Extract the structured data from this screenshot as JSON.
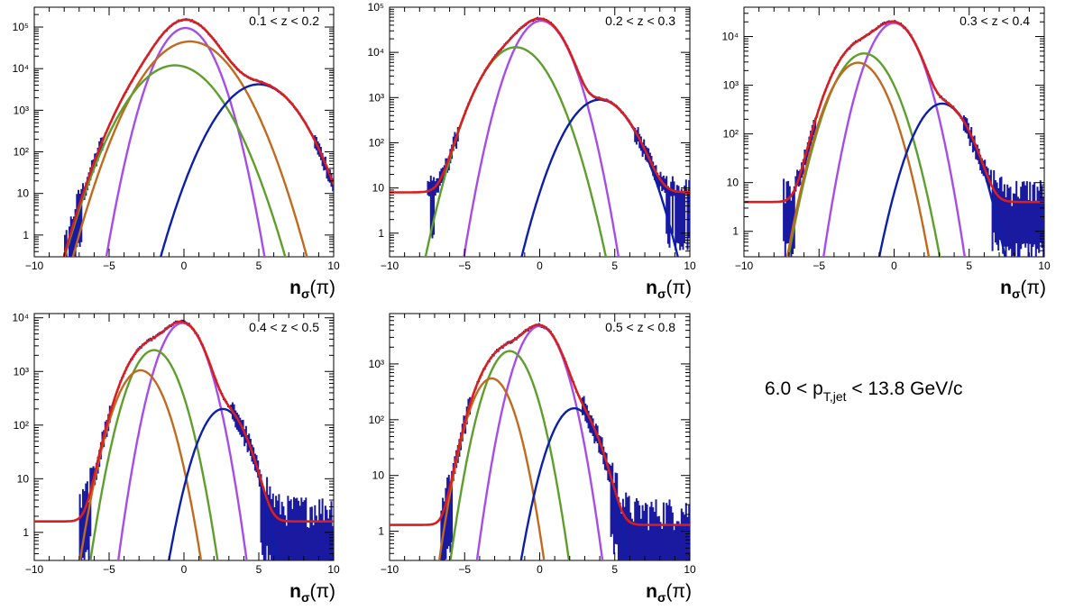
{
  "figure": {
    "note_label_prefix": "6.0 < p",
    "note_label_sub": "T,jet",
    "note_label_suffix": " < 13.8 GeV/c",
    "xaxis_title_main": "n",
    "xaxis_title_sub": "σ",
    "xaxis_title_tail": "(π)"
  },
  "colors": {
    "total": "#d81e1e",
    "data": "#1a1aa0",
    "purple": "#a64de8",
    "green": "#5e9e2c",
    "orange": "#bf6a1f",
    "blue": "#0b1fa8"
  },
  "chart_data": [
    {
      "type": "line",
      "title": "0.1 < z < 0.2",
      "xlabel": "nσ(π)",
      "ylabel": "",
      "xlim": [
        -10,
        10
      ],
      "ylim": [
        0.3,
        300000
      ],
      "yscale": "log",
      "xticks": [
        -10,
        -5,
        0,
        5,
        10
      ],
      "yticks": [
        {
          "v": 1,
          "t": "1"
        },
        {
          "v": 10,
          "t": "10"
        },
        {
          "v": 100,
          "t": "10²"
        },
        {
          "v": 1000,
          "t": "10³"
        },
        {
          "v": 10000,
          "t": "10⁴"
        },
        {
          "v": 100000,
          "t": "10⁵"
        }
      ],
      "components": [
        {
          "color": "purple",
          "A": 95000,
          "mu": 0.1,
          "sigma": 1.05
        },
        {
          "color": "orange",
          "A": 45000,
          "mu": 0.4,
          "sigma": 1.6
        },
        {
          "color": "green",
          "A": 12000,
          "mu": -0.6,
          "sigma": 1.6
        },
        {
          "color": "blue",
          "A": 4200,
          "mu": 5.0,
          "sigma": 1.5
        }
      ],
      "background": 0,
      "data_range": [
        -9.8,
        10
      ],
      "data_floor": 0.5
    },
    {
      "type": "line",
      "title": "0.2 < z < 0.3",
      "xlabel": "nσ(π)",
      "ylabel": "",
      "xlim": [
        -10,
        10
      ],
      "ylim": [
        0.3,
        100000
      ],
      "yscale": "log",
      "xticks": [
        -10,
        -5,
        0,
        5,
        10
      ],
      "yticks": [
        {
          "v": 1,
          "t": "1"
        },
        {
          "v": 10,
          "t": "10"
        },
        {
          "v": 100,
          "t": "10²"
        },
        {
          "v": 1000,
          "t": "10³"
        },
        {
          "v": 10000,
          "t": "10⁴"
        },
        {
          "v": 100000,
          "t": "10⁵"
        }
      ],
      "components": [
        {
          "color": "purple",
          "A": 50000,
          "mu": 0.1,
          "sigma": 1.05
        },
        {
          "color": "green",
          "A": 13000,
          "mu": -1.6,
          "sigma": 1.3
        },
        {
          "color": "blue",
          "A": 900,
          "mu": 4.0,
          "sigma": 1.3
        }
      ],
      "background": 8,
      "data_range": [
        -7.5,
        10
      ],
      "data_floor": 0.5
    },
    {
      "type": "line",
      "title": "0.3 < z < 0.4",
      "xlabel": "nσ(π)",
      "ylabel": "",
      "xlim": [
        -10,
        10
      ],
      "ylim": [
        0.3,
        40000
      ],
      "yscale": "log",
      "xticks": [
        -10,
        -5,
        0,
        5,
        10
      ],
      "yticks": [
        {
          "v": 1,
          "t": "1"
        },
        {
          "v": 10,
          "t": "10"
        },
        {
          "v": 100,
          "t": "10²"
        },
        {
          "v": 1000,
          "t": "10³"
        },
        {
          "v": 10000,
          "t": "10⁴"
        }
      ],
      "components": [
        {
          "color": "purple",
          "A": 19000,
          "mu": 0.0,
          "sigma": 1.0
        },
        {
          "color": "green",
          "A": 4500,
          "mu": -2.0,
          "sigma": 1.15
        },
        {
          "color": "orange",
          "A": 2900,
          "mu": -2.4,
          "sigma": 1.1
        },
        {
          "color": "blue",
          "A": 420,
          "mu": 3.2,
          "sigma": 1.1
        }
      ],
      "background": 4,
      "data_range": [
        -7.4,
        10
      ],
      "data_floor": 0.5
    },
    {
      "type": "line",
      "title": "0.4 < z < 0.5",
      "xlabel": "nσ(π)",
      "ylabel": "",
      "xlim": [
        -10,
        10
      ],
      "ylim": [
        0.3,
        12000
      ],
      "yscale": "log",
      "xticks": [
        -10,
        -5,
        0,
        5,
        10
      ],
      "yticks": [
        {
          "v": 1,
          "t": "1"
        },
        {
          "v": 10,
          "t": "10"
        },
        {
          "v": 100,
          "t": "10²"
        },
        {
          "v": 1000,
          "t": "10³"
        },
        {
          "v": 10000,
          "t": "10⁴"
        }
      ],
      "components": [
        {
          "color": "purple",
          "A": 8000,
          "mu": -0.1,
          "sigma": 0.95
        },
        {
          "color": "green",
          "A": 2500,
          "mu": -2.0,
          "sigma": 1.0
        },
        {
          "color": "orange",
          "A": 1050,
          "mu": -2.9,
          "sigma": 1.0
        },
        {
          "color": "blue",
          "A": 200,
          "mu": 2.6,
          "sigma": 1.0
        }
      ],
      "background": 1.6,
      "data_range": [
        -7.0,
        10
      ],
      "data_floor": 0.5
    },
    {
      "type": "line",
      "title": "0.5 < z < 0.8",
      "xlabel": "nσ(π)",
      "ylabel": "",
      "xlim": [
        -10,
        10
      ],
      "ylim": [
        0.3,
        8000
      ],
      "yscale": "log",
      "xticks": [
        -10,
        -5,
        0,
        5,
        10
      ],
      "yticks": [
        {
          "v": 1,
          "t": "1"
        },
        {
          "v": 10,
          "t": "10"
        },
        {
          "v": 100,
          "t": "10²"
        },
        {
          "v": 1000,
          "t": "10³"
        }
      ],
      "components": [
        {
          "color": "purple",
          "A": 4800,
          "mu": 0.0,
          "sigma": 0.95
        },
        {
          "color": "green",
          "A": 1700,
          "mu": -2.0,
          "sigma": 0.95
        },
        {
          "color": "orange",
          "A": 550,
          "mu": -3.2,
          "sigma": 0.9
        },
        {
          "color": "blue",
          "A": 160,
          "mu": 2.3,
          "sigma": 1.0
        }
      ],
      "background": 1.3,
      "data_range": [
        -6.6,
        10
      ],
      "data_floor": 0.5
    }
  ]
}
